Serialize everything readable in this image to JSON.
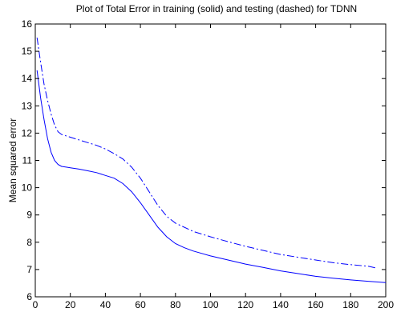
{
  "chart_data": {
    "type": "line",
    "title": "Plot of Total Error in training (solid) and testing (dashed) for TDNN",
    "xlabel": "",
    "ylabel": "Mean squared error",
    "xlim": [
      0,
      200
    ],
    "ylim": [
      6,
      16
    ],
    "xticks": [
      0,
      20,
      40,
      60,
      80,
      100,
      120,
      140,
      160,
      180,
      200
    ],
    "yticks": [
      6,
      7,
      8,
      9,
      10,
      11,
      12,
      13,
      14,
      15,
      16
    ],
    "grid": false,
    "line_color": "#0000ff",
    "series": [
      {
        "style": "solid",
        "x": [
          1,
          3,
          5,
          7,
          9,
          11,
          13,
          15,
          18,
          20,
          25,
          30,
          35,
          40,
          45,
          50,
          55,
          60,
          65,
          70,
          75,
          80,
          85,
          90,
          100,
          110,
          120,
          130,
          140,
          150,
          160,
          170,
          180,
          190,
          200
        ],
        "y": [
          14.3,
          13.3,
          12.5,
          11.8,
          11.3,
          11.0,
          10.85,
          10.78,
          10.75,
          10.73,
          10.68,
          10.62,
          10.55,
          10.45,
          10.35,
          10.15,
          9.85,
          9.45,
          9.0,
          8.55,
          8.2,
          7.95,
          7.8,
          7.68,
          7.5,
          7.35,
          7.2,
          7.08,
          6.95,
          6.85,
          6.75,
          6.68,
          6.62,
          6.57,
          6.52
        ]
      },
      {
        "style": "dashed",
        "x": [
          1,
          3,
          5,
          7,
          9,
          11,
          13,
          15,
          20,
          25,
          30,
          35,
          40,
          45,
          50,
          55,
          60,
          65,
          70,
          75,
          80,
          90,
          100,
          110,
          120,
          130,
          140,
          150,
          160,
          170,
          180,
          190,
          195
        ],
        "y": [
          15.5,
          14.6,
          13.8,
          13.2,
          12.7,
          12.3,
          12.05,
          11.95,
          11.85,
          11.75,
          11.65,
          11.55,
          11.42,
          11.25,
          11.05,
          10.75,
          10.35,
          9.85,
          9.35,
          8.95,
          8.7,
          8.4,
          8.2,
          8.02,
          7.85,
          7.7,
          7.55,
          7.45,
          7.35,
          7.25,
          7.18,
          7.12,
          7.05
        ]
      }
    ]
  }
}
